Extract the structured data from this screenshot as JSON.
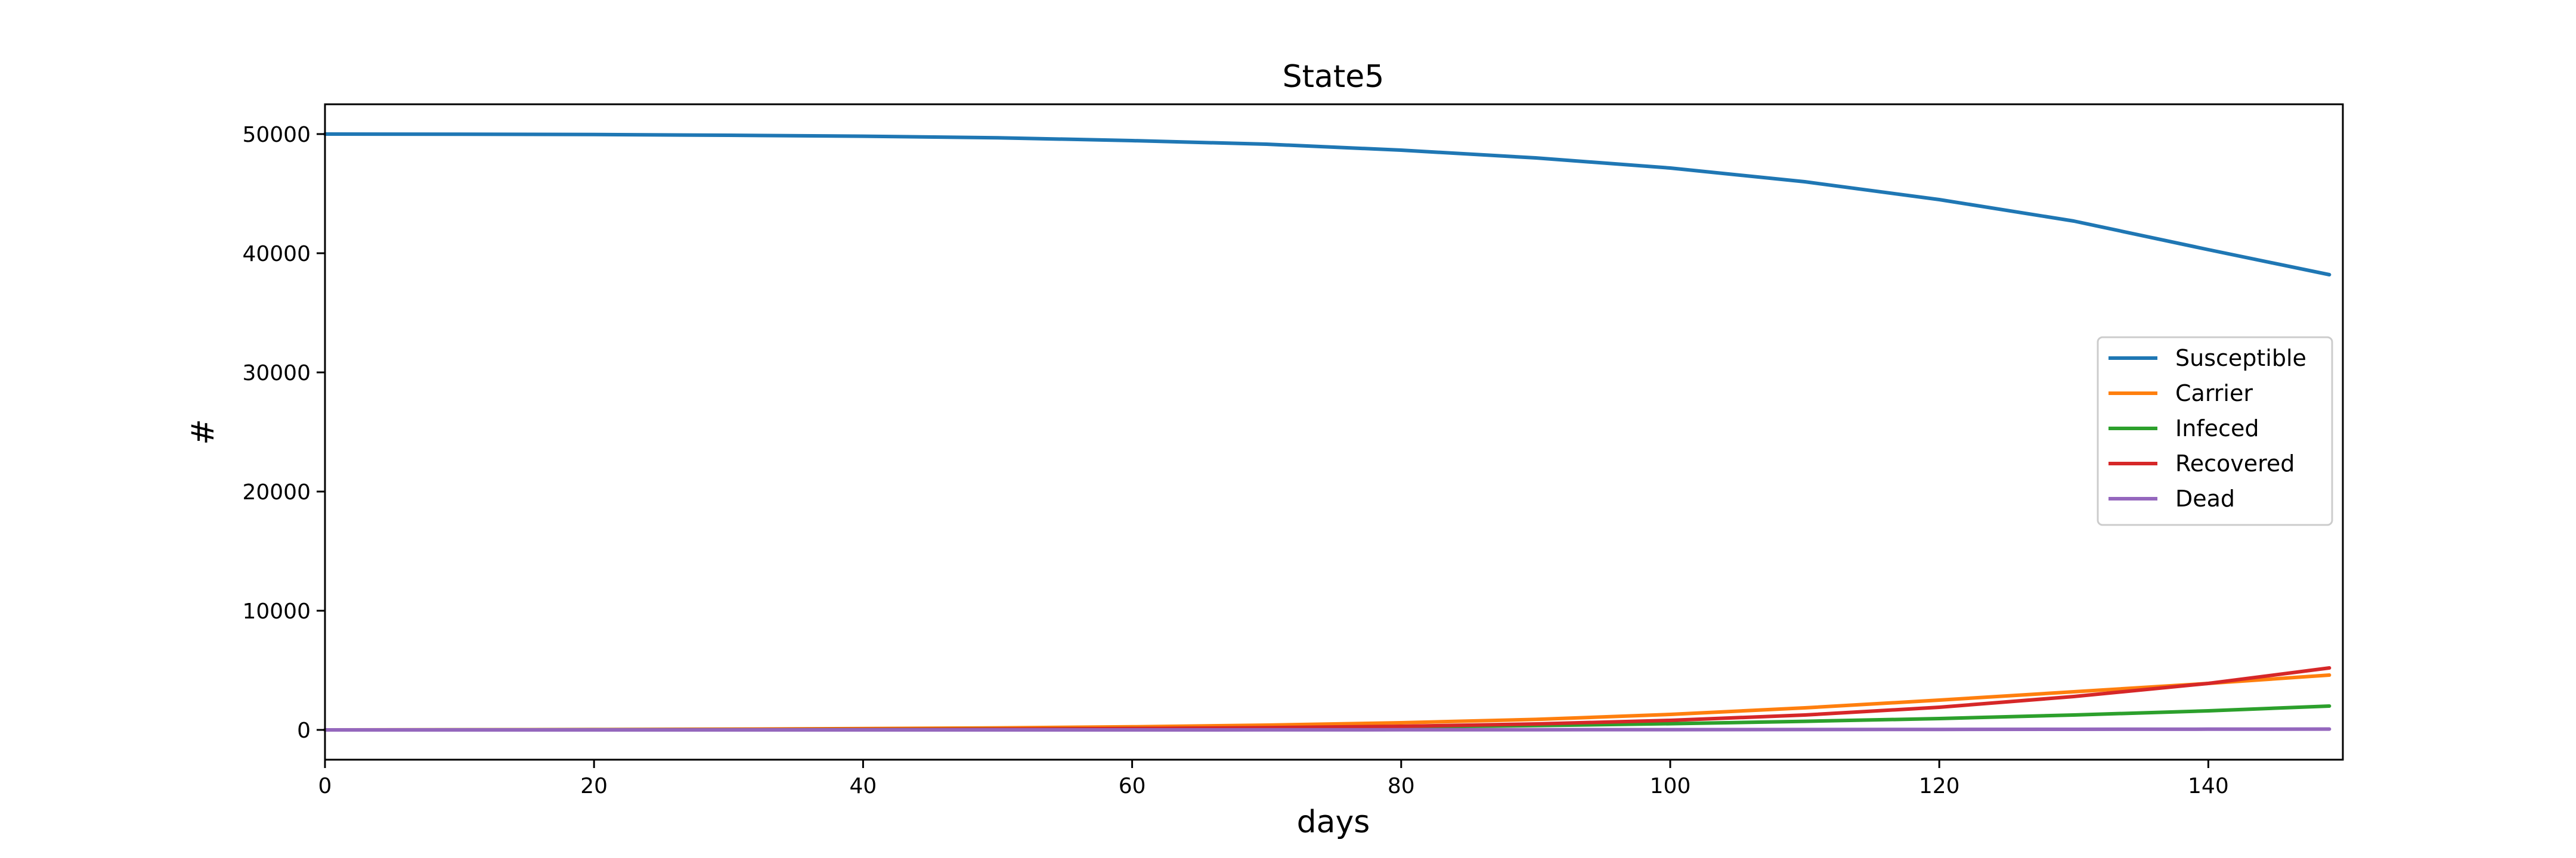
{
  "chart_data": {
    "type": "line",
    "title": "State5",
    "xlabel": "days",
    "ylabel": "#",
    "xlim": [
      0,
      150
    ],
    "ylim": [
      -2500,
      52500
    ],
    "xticks": [
      0,
      20,
      40,
      60,
      80,
      100,
      120,
      140
    ],
    "yticks": [
      0,
      10000,
      20000,
      30000,
      40000,
      50000
    ],
    "grid": false,
    "legend_position": "center-right",
    "x": [
      0,
      10,
      20,
      30,
      40,
      50,
      60,
      70,
      80,
      90,
      100,
      110,
      120,
      130,
      140,
      149
    ],
    "series": [
      {
        "name": "Susceptible",
        "color": "#1f77b4",
        "values": [
          50000,
          49990,
          49960,
          49900,
          49820,
          49690,
          49450,
          49150,
          48650,
          48000,
          47150,
          46000,
          44500,
          42700,
          40300,
          38200
        ]
      },
      {
        "name": "Carrier",
        "color": "#ff7f0e",
        "values": [
          0,
          10,
          30,
          60,
          110,
          170,
          260,
          400,
          600,
          880,
          1300,
          1850,
          2500,
          3200,
          3900,
          4600
        ]
      },
      {
        "name": "Infeced",
        "color": "#2ca02c",
        "values": [
          0,
          5,
          10,
          20,
          40,
          70,
          110,
          170,
          250,
          360,
          520,
          720,
          950,
          1250,
          1600,
          2000
        ]
      },
      {
        "name": "Recovered",
        "color": "#d62728",
        "values": [
          0,
          0,
          5,
          15,
          30,
          60,
          110,
          190,
          300,
          500,
          800,
          1250,
          1900,
          2800,
          3900,
          5200
        ]
      },
      {
        "name": "Dead",
        "color": "#9467bd",
        "values": [
          0,
          0,
          0,
          0,
          0,
          0,
          0,
          5,
          10,
          15,
          20,
          30,
          40,
          50,
          60,
          70
        ]
      }
    ]
  }
}
